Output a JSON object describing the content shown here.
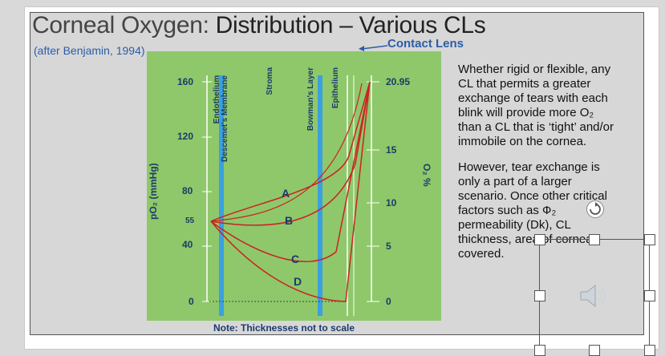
{
  "title": {
    "prefix": "Corneal Oxygen:",
    "main": "Distribution – Various CLs"
  },
  "subtitle": "(after Benjamin, 1994)",
  "contact_lens_label": "Contact Lens",
  "note": "Note:  Thicknesses not to scale",
  "body": {
    "p1": "Whether rigid or flexible, any CL that permits a greater exchange of tears with each blink will provide more O₂ than a CL that is ‘tight’ and/or immobile on the cornea.",
    "p2": "However, tear exchange is only a part of a larger scenario.  Once other critical factors such as Ф₂ permeability (Dk), CL thickness, area of cornea covered."
  },
  "chart_data": {
    "type": "line",
    "ylabel_left": "pO₂ (mmHg)",
    "ylabel_right": "O₂ %",
    "left_ticks": [
      "160",
      "120",
      "80",
      "55",
      "40",
      "0"
    ],
    "right_ticks": [
      "20.95",
      "15",
      "10",
      "5",
      "0"
    ],
    "layers": [
      "Endothelium",
      "Descemet's Membrane",
      "Stroma",
      "Bowman's Layer",
      "Epithelium"
    ],
    "curve_labels": [
      "A",
      "B",
      "C",
      "D"
    ],
    "ylim": [
      0,
      160
    ]
  },
  "icons": {
    "speaker": "speaker-icon",
    "rotate": "rotate-icon"
  }
}
